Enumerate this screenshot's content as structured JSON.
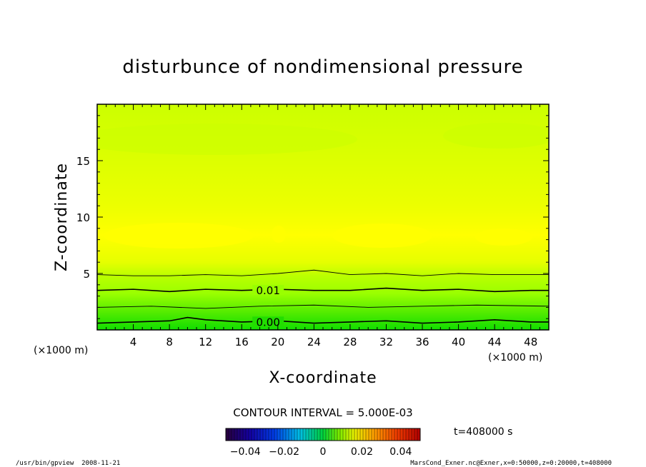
{
  "chart_data": {
    "type": "contour",
    "title": "disturbunce of nondimensional pressure",
    "xlabel": "X-coordinate",
    "ylabel": "Z-coordinate",
    "x_unit_label": "(×1000 m)",
    "xlim": [
      0,
      50
    ],
    "ylim": [
      0,
      20
    ],
    "x_ticks": [
      4,
      8,
      12,
      16,
      20,
      24,
      28,
      32,
      36,
      40,
      44,
      48
    ],
    "x_tick_labels": [
      "4",
      "8",
      "12",
      "16",
      "20",
      "24",
      "28",
      "32",
      "36",
      "40",
      "44",
      "48"
    ],
    "y_ticks": [
      5,
      10,
      15
    ],
    "y_tick_labels": [
      "5",
      "10",
      "15"
    ],
    "contour_interval_text": "CONTOUR INTERVAL = 5.000E-03",
    "contour_levels": [
      0.0,
      0.005,
      0.01,
      0.015
    ],
    "contour_lines": [
      {
        "level": 0.0,
        "label": "0.00",
        "label_x": 17.5,
        "points": [
          [
            0,
            0.6
          ],
          [
            4,
            0.7
          ],
          [
            8,
            0.8
          ],
          [
            10,
            1.1
          ],
          [
            12,
            0.9
          ],
          [
            16,
            0.7
          ],
          [
            20,
            0.8
          ],
          [
            24,
            0.6
          ],
          [
            28,
            0.7
          ],
          [
            32,
            0.8
          ],
          [
            36,
            0.6
          ],
          [
            40,
            0.7
          ],
          [
            44,
            0.9
          ],
          [
            48,
            0.7
          ],
          [
            50,
            0.7
          ]
        ]
      },
      {
        "level": 0.005,
        "label": "",
        "label_x": null,
        "points": [
          [
            0,
            2.0
          ],
          [
            6,
            2.1
          ],
          [
            12,
            1.9
          ],
          [
            18,
            2.1
          ],
          [
            24,
            2.2
          ],
          [
            30,
            2.0
          ],
          [
            36,
            2.1
          ],
          [
            42,
            2.2
          ],
          [
            50,
            2.1
          ]
        ]
      },
      {
        "level": 0.01,
        "label": "0.01",
        "label_x": 17.5,
        "points": [
          [
            0,
            3.5
          ],
          [
            4,
            3.6
          ],
          [
            8,
            3.4
          ],
          [
            12,
            3.6
          ],
          [
            16,
            3.5
          ],
          [
            20,
            3.6
          ],
          [
            24,
            3.5
          ],
          [
            28,
            3.5
          ],
          [
            32,
            3.7
          ],
          [
            36,
            3.5
          ],
          [
            40,
            3.6
          ],
          [
            44,
            3.4
          ],
          [
            48,
            3.5
          ],
          [
            50,
            3.5
          ]
        ]
      },
      {
        "level": 0.015,
        "label": "",
        "label_x": null,
        "points": [
          [
            0,
            4.9
          ],
          [
            4,
            4.8
          ],
          [
            8,
            4.8
          ],
          [
            12,
            4.9
          ],
          [
            16,
            4.8
          ],
          [
            20,
            5.0
          ],
          [
            24,
            5.3
          ],
          [
            28,
            4.9
          ],
          [
            32,
            5.0
          ],
          [
            36,
            4.8
          ],
          [
            40,
            5.0
          ],
          [
            44,
            4.9
          ],
          [
            48,
            4.9
          ],
          [
            50,
            4.9
          ]
        ]
      }
    ],
    "colorbar": {
      "ticks": [
        -0.04,
        -0.02,
        0,
        0.02,
        0.04
      ],
      "tick_labels": [
        "−0.04",
        "−0.02",
        "0",
        "0.02",
        "0.04"
      ],
      "range": [
        -0.05,
        0.05
      ]
    },
    "time_label": "t=408000 s"
  },
  "footer": {
    "left": "/usr/bin/gpview  2008-11-21",
    "right": "MarsCond_Exner.nc@Exner,x=0:50000,z=0:20000,t=408000"
  },
  "colors": {
    "plot_fill_main": "#d6ff00",
    "band_yellow": "#ffff00",
    "green_light": "#aaff00",
    "green_mid": "#66ee00",
    "green_dark": "#11dd00"
  }
}
